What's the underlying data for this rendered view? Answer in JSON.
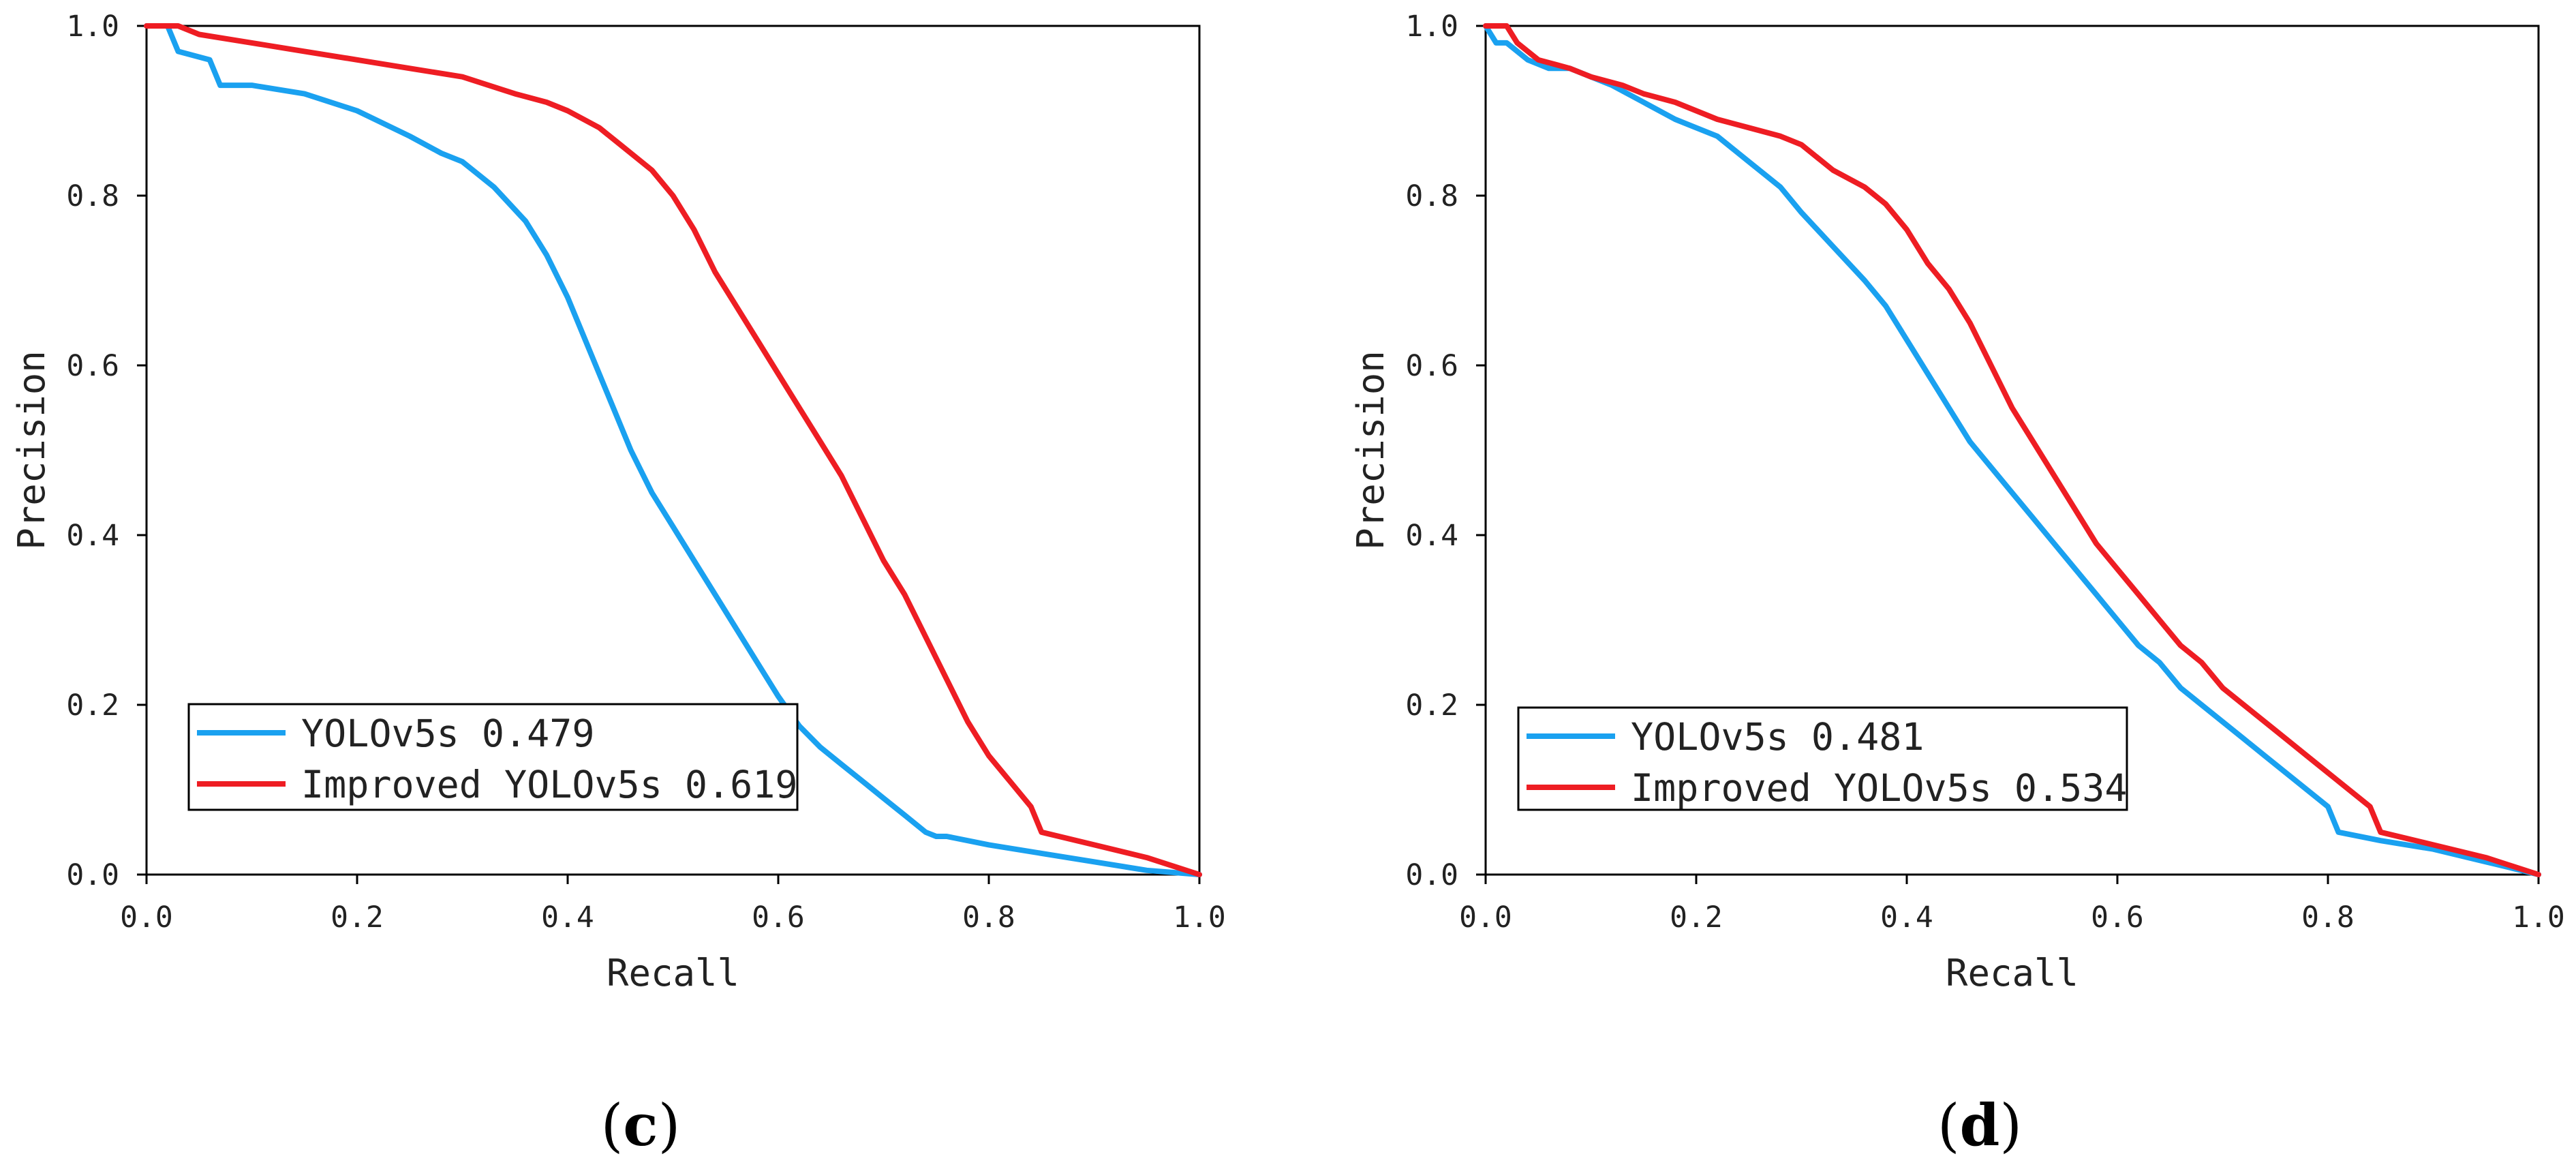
{
  "chart_data": [
    {
      "type": "line",
      "panel_label": {
        "open": "(",
        "letter": "c",
        "close": ")"
      },
      "xlabel": "Recall",
      "ylabel": "Precision",
      "xlim": [
        0.0,
        1.0
      ],
      "ylim": [
        0.0,
        1.0
      ],
      "xticks": [
        "0.0",
        "0.2",
        "0.4",
        "0.6",
        "0.8",
        "1.0"
      ],
      "yticks": [
        "0.0",
        "0.2",
        "0.4",
        "0.6",
        "0.8",
        "1.0"
      ],
      "grid": false,
      "legend_position": "lower-left",
      "series": [
        {
          "name": "YOLOv5s 0.479",
          "color": "#1AA1F0",
          "x": [
            0.0,
            0.02,
            0.03,
            0.06,
            0.07,
            0.1,
            0.15,
            0.2,
            0.25,
            0.28,
            0.3,
            0.33,
            0.36,
            0.38,
            0.4,
            0.42,
            0.44,
            0.46,
            0.48,
            0.5,
            0.52,
            0.54,
            0.56,
            0.58,
            0.6,
            0.62,
            0.64,
            0.66,
            0.68,
            0.7,
            0.72,
            0.74,
            0.75,
            0.76,
            0.8,
            0.85,
            0.9,
            0.95,
            1.0
          ],
          "y": [
            1.0,
            1.0,
            0.97,
            0.96,
            0.93,
            0.93,
            0.92,
            0.9,
            0.87,
            0.85,
            0.84,
            0.81,
            0.77,
            0.73,
            0.68,
            0.62,
            0.56,
            0.5,
            0.45,
            0.41,
            0.37,
            0.33,
            0.29,
            0.25,
            0.21,
            0.175,
            0.15,
            0.13,
            0.11,
            0.09,
            0.07,
            0.05,
            0.045,
            0.045,
            0.035,
            0.025,
            0.015,
            0.005,
            0.0
          ]
        },
        {
          "name": "Improved YOLOv5s 0.619",
          "color": "#EE1D23",
          "x": [
            0.0,
            0.03,
            0.05,
            0.1,
            0.15,
            0.2,
            0.25,
            0.3,
            0.35,
            0.38,
            0.4,
            0.43,
            0.45,
            0.48,
            0.5,
            0.52,
            0.54,
            0.56,
            0.58,
            0.6,
            0.62,
            0.64,
            0.66,
            0.68,
            0.7,
            0.72,
            0.74,
            0.76,
            0.78,
            0.8,
            0.82,
            0.84,
            0.85,
            0.9,
            0.95,
            1.0
          ],
          "y": [
            1.0,
            1.0,
            0.99,
            0.98,
            0.97,
            0.96,
            0.95,
            0.94,
            0.92,
            0.91,
            0.9,
            0.88,
            0.86,
            0.83,
            0.8,
            0.76,
            0.71,
            0.67,
            0.63,
            0.59,
            0.55,
            0.51,
            0.47,
            0.42,
            0.37,
            0.33,
            0.28,
            0.23,
            0.18,
            0.14,
            0.11,
            0.08,
            0.05,
            0.035,
            0.02,
            0.0
          ]
        }
      ]
    },
    {
      "type": "line",
      "panel_label": {
        "open": "(",
        "letter": "d",
        "close": ")"
      },
      "xlabel": "Recall",
      "ylabel": "Precision",
      "xlim": [
        0.0,
        1.0
      ],
      "ylim": [
        0.0,
        1.0
      ],
      "xticks": [
        "0.0",
        "0.2",
        "0.4",
        "0.6",
        "0.8",
        "1.0"
      ],
      "yticks": [
        "0.0",
        "0.2",
        "0.4",
        "0.6",
        "0.8",
        "1.0"
      ],
      "grid": false,
      "legend_position": "lower-left",
      "series": [
        {
          "name": "YOLOv5s 0.481",
          "color": "#1AA1F0",
          "x": [
            0.0,
            0.01,
            0.02,
            0.04,
            0.06,
            0.08,
            0.1,
            0.12,
            0.15,
            0.18,
            0.2,
            0.22,
            0.25,
            0.28,
            0.3,
            0.33,
            0.36,
            0.38,
            0.4,
            0.42,
            0.44,
            0.46,
            0.48,
            0.5,
            0.52,
            0.54,
            0.56,
            0.58,
            0.6,
            0.62,
            0.64,
            0.66,
            0.68,
            0.7,
            0.72,
            0.74,
            0.76,
            0.78,
            0.8,
            0.81,
            0.85,
            0.9,
            0.95,
            1.0
          ],
          "y": [
            1.0,
            0.98,
            0.98,
            0.96,
            0.95,
            0.95,
            0.94,
            0.93,
            0.91,
            0.89,
            0.88,
            0.87,
            0.84,
            0.81,
            0.78,
            0.74,
            0.7,
            0.67,
            0.63,
            0.59,
            0.55,
            0.51,
            0.48,
            0.45,
            0.42,
            0.39,
            0.36,
            0.33,
            0.3,
            0.27,
            0.25,
            0.22,
            0.2,
            0.18,
            0.16,
            0.14,
            0.12,
            0.1,
            0.08,
            0.05,
            0.04,
            0.03,
            0.015,
            0.0
          ]
        },
        {
          "name": "Improved YOLOv5s 0.534",
          "color": "#EE1D23",
          "x": [
            0.0,
            0.02,
            0.03,
            0.05,
            0.08,
            0.1,
            0.13,
            0.15,
            0.18,
            0.2,
            0.22,
            0.25,
            0.28,
            0.3,
            0.33,
            0.36,
            0.38,
            0.4,
            0.42,
            0.44,
            0.46,
            0.48,
            0.5,
            0.52,
            0.54,
            0.56,
            0.58,
            0.6,
            0.62,
            0.64,
            0.66,
            0.68,
            0.7,
            0.72,
            0.74,
            0.76,
            0.78,
            0.8,
            0.82,
            0.84,
            0.85,
            0.9,
            0.95,
            1.0
          ],
          "y": [
            1.0,
            1.0,
            0.98,
            0.96,
            0.95,
            0.94,
            0.93,
            0.92,
            0.91,
            0.9,
            0.89,
            0.88,
            0.87,
            0.86,
            0.83,
            0.81,
            0.79,
            0.76,
            0.72,
            0.69,
            0.65,
            0.6,
            0.55,
            0.51,
            0.47,
            0.43,
            0.39,
            0.36,
            0.33,
            0.3,
            0.27,
            0.25,
            0.22,
            0.2,
            0.18,
            0.16,
            0.14,
            0.12,
            0.1,
            0.08,
            0.05,
            0.035,
            0.02,
            0.0
          ]
        }
      ]
    }
  ]
}
